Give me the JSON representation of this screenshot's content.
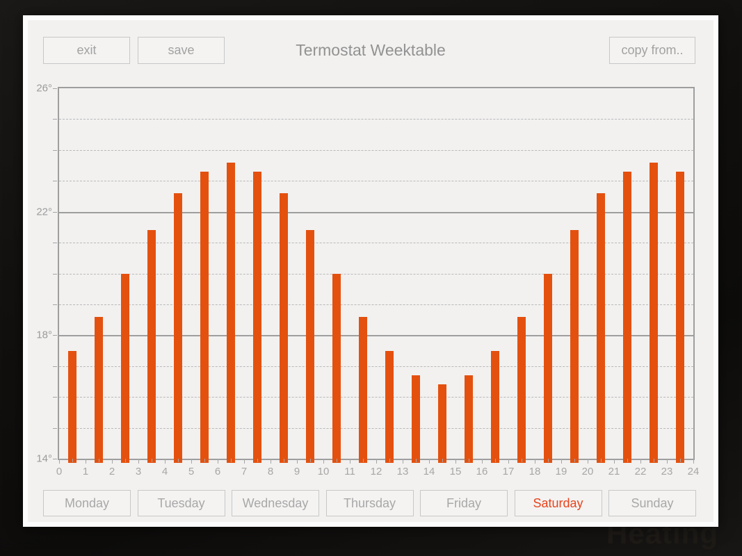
{
  "title": "Termostat Weektable",
  "buttons": {
    "exit": "exit",
    "save": "save",
    "copy_from": "copy from.."
  },
  "watermark": "Heating",
  "days": [
    {
      "label": "Monday",
      "active": false
    },
    {
      "label": "Tuesday",
      "active": false
    },
    {
      "label": "Wednesday",
      "active": false
    },
    {
      "label": "Thursday",
      "active": false
    },
    {
      "label": "Friday",
      "active": false
    },
    {
      "label": "Saturday",
      "active": true
    },
    {
      "label": "Sunday",
      "active": false
    }
  ],
  "selected_day": "Saturday",
  "chart_data": {
    "type": "bar",
    "title": "Termostat Weektable",
    "hours": [
      0,
      1,
      2,
      3,
      4,
      5,
      6,
      7,
      8,
      9,
      10,
      11,
      12,
      13,
      14,
      15,
      16,
      17,
      18,
      19,
      20,
      21,
      22,
      23
    ],
    "values": [
      17.5,
      18.6,
      20.0,
      21.4,
      22.6,
      23.3,
      23.6,
      23.3,
      22.6,
      21.4,
      20.0,
      18.6,
      17.5,
      16.7,
      16.4,
      16.7,
      17.5,
      18.6,
      20.0,
      21.4,
      22.6,
      23.3,
      23.6,
      23.3
    ],
    "unit": "°C",
    "xlim": [
      0,
      24
    ],
    "ylim": [
      14,
      26
    ],
    "x_tick_labels": [
      "0",
      "1",
      "2",
      "3",
      "4",
      "5",
      "6",
      "7",
      "8",
      "9",
      "10",
      "11",
      "12",
      "13",
      "14",
      "15",
      "16",
      "17",
      "18",
      "19",
      "20",
      "21",
      "22",
      "23",
      "24"
    ],
    "y_major_ticks": [
      14,
      18,
      22,
      26
    ],
    "y_major_tick_labels": [
      "14°",
      "18°",
      "22°",
      "26°"
    ],
    "y_minor_step": 1,
    "grid": {
      "major_style": "solid",
      "minor_style": "dashed",
      "shown": true
    },
    "legend": {
      "shown": false
    },
    "bar_color": "#e4510f"
  },
  "colors": {
    "accent_bar": "#e4510f",
    "active_day_text": "#e8431b",
    "panel_background": "#f2f1f0",
    "panel_frame": "#fcfcfc",
    "outer_background": "#12100e",
    "grid_major": "#9e9e9e",
    "grid_minor": "#b9b9b9",
    "muted_text": "#a2a2a2"
  }
}
